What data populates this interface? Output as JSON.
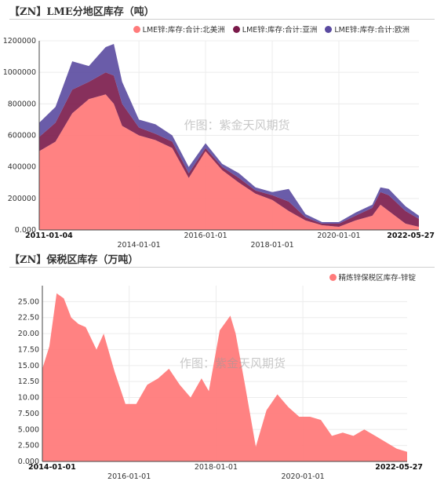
{
  "chart_data": [
    {
      "type": "area",
      "stacked": true,
      "title": "【ZN】LME分地区库存（吨）",
      "x_start": "2011-01-04",
      "x_end": "2022-05-27",
      "x_ticks": [
        "2014-01-01",
        "2016-01-01",
        "2018-01-01",
        "2020-01-01"
      ],
      "ylim": [
        0,
        1200000
      ],
      "y_ticks": [
        "0.000",
        "200000",
        "400000",
        "600000",
        "800000",
        "1000000",
        "1200000"
      ],
      "grid": true,
      "legend_position": "top-right",
      "watermark": "作图：紫金天风期货",
      "x": [
        "2011-01-04",
        "2011-07-01",
        "2012-01-01",
        "2012-07-01",
        "2013-01-01",
        "2013-04-01",
        "2013-07-01",
        "2014-01-01",
        "2014-07-01",
        "2015-01-01",
        "2015-07-01",
        "2016-01-01",
        "2016-07-01",
        "2017-01-01",
        "2017-07-01",
        "2018-01-01",
        "2018-07-01",
        "2019-01-01",
        "2019-07-01",
        "2020-01-01",
        "2020-07-01",
        "2021-01-01",
        "2021-04-01",
        "2021-07-01",
        "2022-01-01",
        "2022-05-27"
      ],
      "series": [
        {
          "name": "LME锌:库存:合计:北美洲",
          "color": "#ff7b7b",
          "values": [
            500000,
            560000,
            740000,
            830000,
            860000,
            800000,
            660000,
            600000,
            570000,
            520000,
            330000,
            500000,
            380000,
            300000,
            230000,
            190000,
            120000,
            60000,
            30000,
            20000,
            60000,
            90000,
            160000,
            120000,
            40000,
            20000
          ]
        },
        {
          "name": "LME锌:库存:合计:亚洲",
          "color": "#7a1a4a",
          "values": [
            90000,
            120000,
            150000,
            110000,
            140000,
            180000,
            140000,
            50000,
            40000,
            40000,
            30000,
            20000,
            20000,
            30000,
            20000,
            30000,
            60000,
            20000,
            10000,
            20000,
            30000,
            50000,
            80000,
            100000,
            80000,
            50000
          ]
        },
        {
          "name": "LME锌:库存:合计:欧洲",
          "color": "#5a4aa0",
          "values": [
            90000,
            100000,
            180000,
            100000,
            160000,
            200000,
            140000,
            50000,
            60000,
            40000,
            40000,
            30000,
            20000,
            30000,
            20000,
            20000,
            80000,
            20000,
            10000,
            10000,
            20000,
            20000,
            30000,
            40000,
            30000,
            20000
          ]
        }
      ]
    },
    {
      "type": "area",
      "title": "【ZN】保税区库存（万吨）",
      "x_start": "2014-01-01",
      "x_end": "2022-05-27",
      "x_ticks": [
        "2016-01-01",
        "2018-01-01",
        "2020-01-01"
      ],
      "ylim": [
        0,
        27.5
      ],
      "y_ticks": [
        "0.000",
        "2.500",
        "5.000",
        "7.500",
        "10.00",
        "12.50",
        "15.00",
        "17.50",
        "20.00",
        "22.50",
        "25.00"
      ],
      "grid": true,
      "legend_position": "top-right",
      "watermark": "作图：紫金天风期货",
      "x": [
        "2014-01-01",
        "2014-03-01",
        "2014-05-01",
        "2014-07-01",
        "2014-09-01",
        "2014-11-01",
        "2015-01-01",
        "2015-04-01",
        "2015-06-01",
        "2015-09-01",
        "2015-12-01",
        "2016-03-01",
        "2016-06-01",
        "2016-09-01",
        "2016-12-01",
        "2017-03-01",
        "2017-06-01",
        "2017-09-01",
        "2017-11-01",
        "2018-02-01",
        "2018-05-01",
        "2018-06-15",
        "2018-09-01",
        "2018-12-01",
        "2019-03-01",
        "2019-06-01",
        "2019-09-01",
        "2019-12-01",
        "2020-03-01",
        "2020-06-01",
        "2020-09-01",
        "2020-12-01",
        "2021-03-01",
        "2021-06-01",
        "2021-09-01",
        "2021-12-01",
        "2022-03-01",
        "2022-05-27"
      ],
      "series": [
        {
          "name": "精炼锌保税区库存-锌锭",
          "color": "#ff7b7b",
          "values": [
            14.5,
            18.0,
            26.3,
            25.5,
            22.5,
            21.5,
            21.0,
            17.5,
            20.0,
            14.0,
            9.0,
            9.0,
            12.0,
            13.0,
            14.5,
            12.0,
            10.0,
            13.0,
            11.0,
            20.5,
            22.8,
            20.0,
            12.0,
            2.3,
            8.0,
            10.5,
            8.5,
            7.0,
            7.0,
            6.5,
            4.0,
            4.5,
            4.0,
            5.0,
            4.0,
            3.0,
            2.0,
            1.5
          ]
        }
      ]
    }
  ]
}
